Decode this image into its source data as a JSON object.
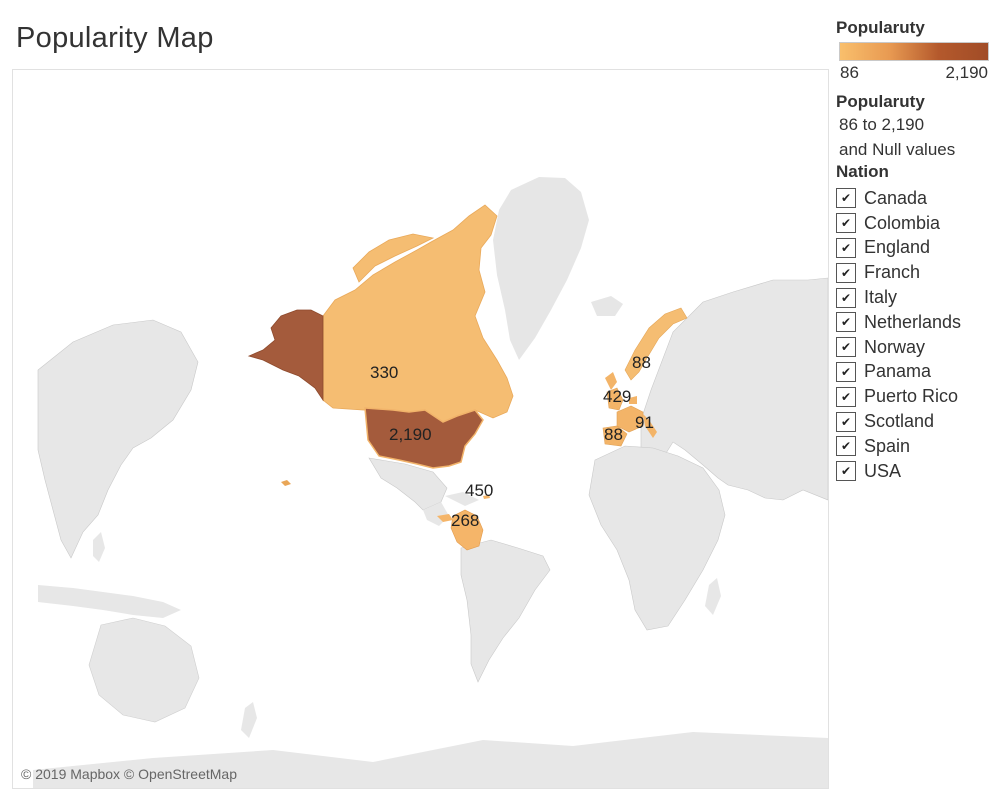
{
  "title": "Popularity Map",
  "attribution": "© 2019 Mapbox © OpenStreetMap",
  "legend": {
    "color_title": "Popularuty",
    "min_label": "86",
    "max_label": "2,190",
    "range_title": "Popularuty",
    "range_text": "86 to 2,190",
    "null_text": "and Null values",
    "nation_title": "Nation",
    "check_glyph": "✔",
    "nations": [
      {
        "label": "Canada",
        "checked": true
      },
      {
        "label": "Colombia",
        "checked": true
      },
      {
        "label": "England",
        "checked": true
      },
      {
        "label": "Franch",
        "checked": true
      },
      {
        "label": "Italy",
        "checked": true
      },
      {
        "label": "Netherlands",
        "checked": true
      },
      {
        "label": "Norway",
        "checked": true
      },
      {
        "label": "Panama",
        "checked": true
      },
      {
        "label": "Puerto Rico",
        "checked": true
      },
      {
        "label": "Scotland",
        "checked": true
      },
      {
        "label": "Spain",
        "checked": true
      },
      {
        "label": "USA",
        "checked": true
      }
    ]
  },
  "colors": {
    "low": "#f9bf6c",
    "high": "#a14c27",
    "land": "#e7e7e7",
    "ocean": "#ffffff"
  },
  "map_labels": {
    "usa": "2,190",
    "canada": "330",
    "panama": "450",
    "colombia": "268",
    "norway": "88",
    "england": "429",
    "spain": "88",
    "italy": "91"
  }
}
